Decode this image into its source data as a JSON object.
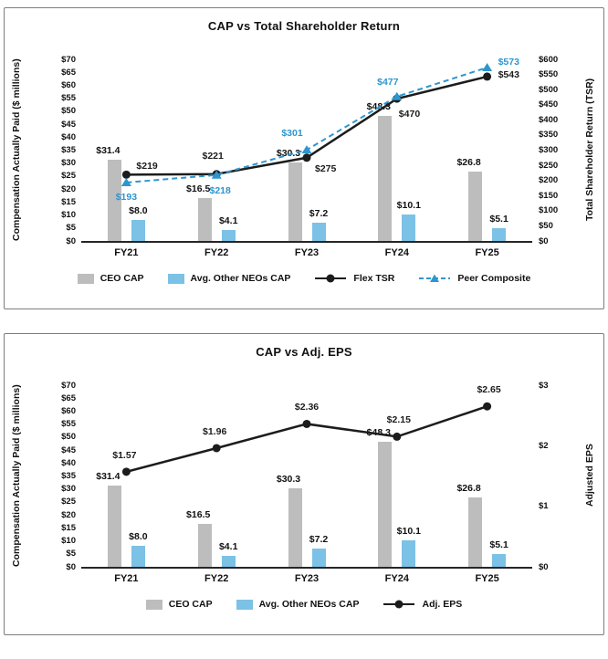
{
  "chart_data": [
    {
      "type": "bar-line-combo",
      "title": "CAP vs Total Shareholder Return",
      "categories": [
        "FY21",
        "FY22",
        "FY23",
        "FY24",
        "FY25"
      ],
      "grid": false,
      "legend_position": "bottom",
      "left_axis": {
        "label": "Compensation Actually Paid ($ millions)",
        "min": 0,
        "max": 70,
        "tick_step": 5,
        "ticks": [
          "$70",
          "$65",
          "$60",
          "$55",
          "$50",
          "$45",
          "$40",
          "$35",
          "$30",
          "$25",
          "$20",
          "$15",
          "$10",
          "$5",
          "$0"
        ]
      },
      "right_axis": {
        "label": "Total Shareholder Return (TSR)",
        "min": 0,
        "max": 600,
        "tick_step": 50,
        "ticks": [
          "$600",
          "$550",
          "$500",
          "$450",
          "$400",
          "$350",
          "$300",
          "$250",
          "$200",
          "$150",
          "$100",
          "$50",
          "$0"
        ]
      },
      "bar_series": [
        {
          "name": "CEO CAP",
          "axis": "left",
          "color": "#bdbdbd",
          "values": [
            31.4,
            16.5,
            30.3,
            48.3,
            26.8
          ],
          "labels": [
            "$31.4",
            "$16.5",
            "$30.3",
            "$48.3",
            "$26.8"
          ]
        },
        {
          "name": "Avg. Other NEOs CAP",
          "axis": "left",
          "color": "#7cc1e6",
          "values": [
            8.0,
            4.1,
            7.2,
            10.1,
            5.1
          ],
          "labels": [
            "$8.0",
            "$4.1",
            "$7.2",
            "$10.1",
            "$5.1"
          ]
        }
      ],
      "line_series": [
        {
          "name": "Flex TSR",
          "axis": "right",
          "color": "#1c1c1c",
          "dash": false,
          "marker": "circle",
          "values": [
            219,
            221,
            275,
            470,
            543
          ],
          "labels": [
            "$219",
            "$221",
            "$275",
            "$470",
            "$543"
          ]
        },
        {
          "name": "Peer Composite",
          "axis": "right",
          "color": "#2e96ce",
          "dash": true,
          "marker": "triangle",
          "values": [
            193,
            218,
            301,
            477,
            573
          ],
          "labels": [
            "$193",
            "$218",
            "$301",
            "$477",
            "$573"
          ]
        }
      ]
    },
    {
      "type": "bar-line-combo",
      "title": "CAP vs Adj. EPS",
      "categories": [
        "FY21",
        "FY22",
        "FY23",
        "FY24",
        "FY25"
      ],
      "grid": false,
      "legend_position": "bottom",
      "left_axis": {
        "label": "Compensation Actually Paid ($ millions)",
        "min": 0,
        "max": 70,
        "tick_step": 5,
        "ticks": [
          "$70",
          "$65",
          "$60",
          "$55",
          "$50",
          "$45",
          "$40",
          "$35",
          "$30",
          "$25",
          "$20",
          "$15",
          "$10",
          "$5",
          "$0"
        ]
      },
      "right_axis": {
        "label": "Adjusted EPS",
        "min": 0,
        "max": 3,
        "tick_step": 1,
        "ticks": [
          "$3",
          "$2",
          "$1",
          "$0"
        ]
      },
      "bar_series": [
        {
          "name": "CEO CAP",
          "axis": "left",
          "color": "#bdbdbd",
          "values": [
            31.4,
            16.5,
            30.3,
            48.3,
            26.8
          ],
          "labels": [
            "$31.4",
            "$16.5",
            "$30.3",
            "$48.3",
            "$26.8"
          ]
        },
        {
          "name": "Avg. Other NEOs CAP",
          "axis": "left",
          "color": "#7cc1e6",
          "values": [
            8.0,
            4.1,
            7.2,
            10.1,
            5.1
          ],
          "labels": [
            "$8.0",
            "$4.1",
            "$7.2",
            "$10.1",
            "$5.1"
          ]
        }
      ],
      "line_series": [
        {
          "name": "Adj. EPS",
          "axis": "right",
          "color": "#1c1c1c",
          "dash": false,
          "marker": "circle",
          "values": [
            1.57,
            1.96,
            2.36,
            2.15,
            2.65
          ],
          "labels": [
            "$1.57",
            "$1.96",
            "$2.36",
            "$2.15",
            "$2.65"
          ]
        }
      ]
    }
  ]
}
